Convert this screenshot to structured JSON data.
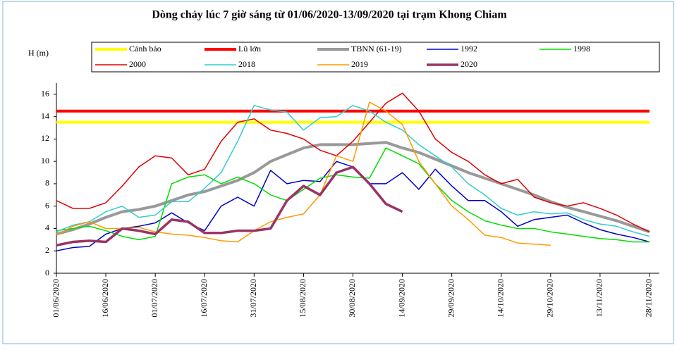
{
  "chart_data": {
    "type": "line",
    "title": "Dòng chảy lúc 7 giờ sáng từ 01/06/2020-13/09/2020 tại trạm Khong Chiam",
    "y_label": "H (m)",
    "x": [
      "2020-06-01",
      "2020-06-06",
      "2020-06-11",
      "2020-06-16",
      "2020-06-21",
      "2020-06-26",
      "2020-07-01",
      "2020-07-06",
      "2020-07-11",
      "2020-07-16",
      "2020-07-21",
      "2020-07-26",
      "2020-07-31",
      "2020-08-05",
      "2020-08-10",
      "2020-08-15",
      "2020-08-20",
      "2020-08-25",
      "2020-08-30",
      "2020-09-04",
      "2020-09-09",
      "2020-09-14",
      "2020-09-19",
      "2020-09-24",
      "2020-09-29",
      "2020-10-04",
      "2020-10-09",
      "2020-10-14",
      "2020-10-19",
      "2020-10-24",
      "2020-10-29",
      "2020-11-03",
      "2020-11-08",
      "2020-11-13",
      "2020-11-18",
      "2020-11-23",
      "2020-11-28"
    ],
    "xlim": [
      "2020-06-01",
      "2020-12-01"
    ],
    "xticks": [
      {
        "value": "2020-06-01",
        "label": "01/06/2020"
      },
      {
        "value": "2020-06-16",
        "label": "16/06/2020"
      },
      {
        "value": "2020-07-01",
        "label": "01/07/2020"
      },
      {
        "value": "2020-07-16",
        "label": "16/07/2020"
      },
      {
        "value": "2020-07-31",
        "label": "31/07/2020"
      },
      {
        "value": "2020-08-15",
        "label": "15/08/2020"
      },
      {
        "value": "2020-08-30",
        "label": "30/08/2020"
      },
      {
        "value": "2020-09-14",
        "label": "14/09/2020"
      },
      {
        "value": "2020-09-29",
        "label": "29/09/2020"
      },
      {
        "value": "2020-10-14",
        "label": "14/10/2020"
      },
      {
        "value": "2020-10-29",
        "label": "29/10/2020"
      },
      {
        "value": "2020-11-13",
        "label": "13/11/2020"
      },
      {
        "value": "2020-11-28",
        "label": "28/11/2020"
      }
    ],
    "ylim": [
      0,
      17
    ],
    "yticks": [
      0,
      2,
      4,
      6,
      8,
      10,
      12,
      14,
      16
    ],
    "grid": false,
    "series": [
      {
        "name": "Cảnh báo",
        "color": "#ffff00",
        "width": 4,
        "values": [
          13.5,
          13.5,
          13.5,
          13.5,
          13.5,
          13.5,
          13.5,
          13.5,
          13.5,
          13.5,
          13.5,
          13.5,
          13.5,
          13.5,
          13.5,
          13.5,
          13.5,
          13.5,
          13.5,
          13.5,
          13.5,
          13.5,
          13.5,
          13.5,
          13.5,
          13.5,
          13.5,
          13.5,
          13.5,
          13.5,
          13.5,
          13.5,
          13.5,
          13.5,
          13.5,
          13.5,
          13.5
        ]
      },
      {
        "name": "Lũ lớn",
        "color": "#ff0000",
        "width": 4,
        "values": [
          14.5,
          14.5,
          14.5,
          14.5,
          14.5,
          14.5,
          14.5,
          14.5,
          14.5,
          14.5,
          14.5,
          14.5,
          14.5,
          14.5,
          14.5,
          14.5,
          14.5,
          14.5,
          14.5,
          14.5,
          14.5,
          14.5,
          14.5,
          14.5,
          14.5,
          14.5,
          14.5,
          14.5,
          14.5,
          14.5,
          14.5,
          14.5,
          14.5,
          14.5,
          14.5,
          14.5,
          14.5
        ]
      },
      {
        "name": "TBNN (61-19)",
        "color": "#999999",
        "width": 4,
        "values": [
          3.5,
          3.9,
          4.4,
          5.0,
          5.5,
          5.7,
          6.0,
          6.5,
          7.0,
          7.3,
          7.8,
          8.3,
          9.0,
          10.0,
          10.6,
          11.2,
          11.5,
          11.5,
          11.5,
          11.6,
          11.7,
          11.2,
          10.8,
          10.2,
          9.6,
          9.0,
          8.5,
          8.0,
          7.5,
          7.0,
          6.4,
          5.9,
          5.5,
          5.1,
          4.7,
          4.2,
          3.7
        ]
      },
      {
        "name": "1992",
        "color": "#0000cc",
        "width": 1.5,
        "values": [
          2.0,
          2.3,
          2.4,
          3.5,
          4.0,
          4.2,
          4.5,
          5.4,
          4.5,
          3.8,
          6.0,
          6.8,
          6.0,
          9.2,
          8.0,
          8.3,
          8.2,
          10.0,
          9.5,
          8.0,
          8.0,
          9.0,
          7.5,
          9.3,
          7.8,
          6.5,
          6.5,
          5.5,
          4.2,
          4.8,
          5.0,
          5.2,
          4.5,
          3.9,
          3.5,
          3.2,
          2.8
        ]
      },
      {
        "name": "1998",
        "color": "#00dd00",
        "width": 1.5,
        "values": [
          3.8,
          4.0,
          4.2,
          3.8,
          3.3,
          3.0,
          3.3,
          8.0,
          8.6,
          8.8,
          8.0,
          8.6,
          8.0,
          7.0,
          6.5,
          7.5,
          8.5,
          8.8,
          8.6,
          8.5,
          11.2,
          10.5,
          9.8,
          8.0,
          6.5,
          5.5,
          4.7,
          4.3,
          4.0,
          4.0,
          3.7,
          3.5,
          3.3,
          3.1,
          3.0,
          2.8,
          2.8
        ]
      },
      {
        "name": "2000",
        "color": "#e00000",
        "width": 1.5,
        "values": [
          6.5,
          5.8,
          5.8,
          6.3,
          7.8,
          9.5,
          10.5,
          10.3,
          8.8,
          9.3,
          11.8,
          13.5,
          13.8,
          12.8,
          12.5,
          12.0,
          11.0,
          10.5,
          11.8,
          13.5,
          15.2,
          16.1,
          14.5,
          12.0,
          10.8,
          10.0,
          8.8,
          8.0,
          8.4,
          6.8,
          6.3,
          6.0,
          6.3,
          5.8,
          5.2,
          4.4,
          3.7
        ]
      },
      {
        "name": "2018",
        "color": "#33cccc",
        "width": 1.5,
        "values": [
          3.7,
          4.3,
          4.6,
          5.5,
          6.0,
          5.0,
          5.2,
          6.4,
          6.4,
          7.6,
          9.0,
          11.8,
          15.0,
          14.6,
          14.4,
          12.8,
          13.9,
          14.0,
          15.0,
          14.5,
          13.5,
          12.8,
          11.5,
          10.5,
          9.5,
          8.0,
          7.0,
          5.8,
          5.2,
          5.5,
          5.3,
          5.4,
          4.8,
          4.4,
          4.2,
          3.7,
          3.3
        ]
      },
      {
        "name": "2019",
        "color": "#ff9900",
        "width": 1.5,
        "values": [
          3.4,
          4.2,
          4.6,
          4.0,
          4.0,
          4.1,
          3.7,
          3.5,
          3.4,
          3.2,
          2.9,
          2.8,
          3.8,
          4.6,
          5.0,
          5.3,
          7.0,
          10.5,
          10.0,
          15.3,
          14.5,
          13.3,
          10.0,
          8.0,
          6.0,
          4.8,
          3.4,
          3.2,
          2.7,
          2.6,
          2.5,
          null,
          null,
          null,
          null,
          null,
          null
        ]
      },
      {
        "name": "2020",
        "color": "#993366",
        "width": 3.5,
        "values": [
          2.5,
          2.8,
          2.9,
          2.8,
          4.0,
          3.8,
          3.5,
          4.8,
          4.6,
          3.6,
          3.6,
          3.8,
          3.8,
          4.0,
          6.5,
          7.8,
          7.0,
          9.0,
          9.5,
          8.0,
          6.2,
          5.5,
          null,
          null,
          null,
          null,
          null,
          null,
          null,
          null,
          null,
          null,
          null,
          null,
          null,
          null,
          null
        ]
      }
    ]
  }
}
